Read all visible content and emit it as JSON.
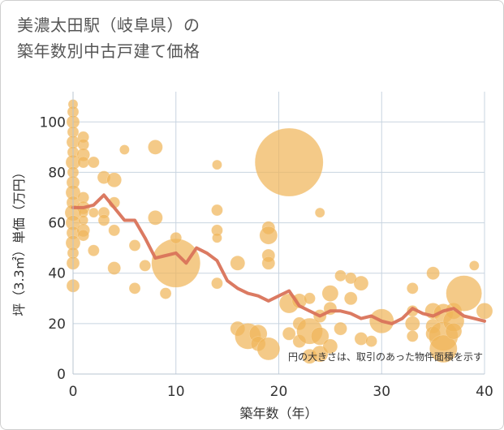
{
  "title_lines": [
    "美濃太田駅（岐阜県）の",
    "築年数別中古戸建て価格"
  ],
  "chart_data": {
    "type": "scatter",
    "xlabel": "築年数（年）",
    "ylabel": "坪（3.3㎡）単価（万円）",
    "xlim": [
      0,
      40
    ],
    "ylim": [
      0,
      112
    ],
    "xticks": [
      0,
      10,
      20,
      30,
      40
    ],
    "yticks": [
      0,
      20,
      40,
      60,
      80,
      100
    ],
    "grid": true,
    "annotation": "円の大きさは、取引のあった物件面積を示す",
    "colors": {
      "bubble": "#f0b65a",
      "line": "#d9735a",
      "grid": "#c8d4e0"
    },
    "points": [
      {
        "x": 0,
        "y": 107,
        "s": 6
      },
      {
        "x": 0,
        "y": 104,
        "s": 7
      },
      {
        "x": 0,
        "y": 100,
        "s": 8
      },
      {
        "x": 0,
        "y": 96,
        "s": 7
      },
      {
        "x": 0,
        "y": 92,
        "s": 8
      },
      {
        "x": 0,
        "y": 88,
        "s": 7
      },
      {
        "x": 0,
        "y": 84,
        "s": 9
      },
      {
        "x": 0,
        "y": 80,
        "s": 7
      },
      {
        "x": 0,
        "y": 76,
        "s": 8
      },
      {
        "x": 0,
        "y": 72,
        "s": 9
      },
      {
        "x": 0,
        "y": 68,
        "s": 8
      },
      {
        "x": 0,
        "y": 64,
        "s": 10
      },
      {
        "x": 0,
        "y": 60,
        "s": 9
      },
      {
        "x": 0,
        "y": 56,
        "s": 8
      },
      {
        "x": 0,
        "y": 52,
        "s": 9
      },
      {
        "x": 0,
        "y": 48,
        "s": 7
      },
      {
        "x": 0,
        "y": 44,
        "s": 8
      },
      {
        "x": 0,
        "y": 35,
        "s": 8
      },
      {
        "x": 1,
        "y": 94,
        "s": 7
      },
      {
        "x": 1,
        "y": 91,
        "s": 7
      },
      {
        "x": 1,
        "y": 87,
        "s": 8
      },
      {
        "x": 1,
        "y": 84,
        "s": 7
      },
      {
        "x": 1,
        "y": 70,
        "s": 7
      },
      {
        "x": 1,
        "y": 66,
        "s": 8
      },
      {
        "x": 1,
        "y": 64,
        "s": 6
      },
      {
        "x": 1,
        "y": 61,
        "s": 6
      },
      {
        "x": 1,
        "y": 57,
        "s": 8
      },
      {
        "x": 1,
        "y": 55,
        "s": 7
      },
      {
        "x": 2,
        "y": 84,
        "s": 7
      },
      {
        "x": 2,
        "y": 64,
        "s": 6
      },
      {
        "x": 2,
        "y": 49,
        "s": 7
      },
      {
        "x": 3,
        "y": 78,
        "s": 8
      },
      {
        "x": 3,
        "y": 64,
        "s": 7
      },
      {
        "x": 3,
        "y": 61,
        "s": 7
      },
      {
        "x": 4,
        "y": 77,
        "s": 9
      },
      {
        "x": 4,
        "y": 68,
        "s": 7
      },
      {
        "x": 4,
        "y": 57,
        "s": 7
      },
      {
        "x": 4,
        "y": 42,
        "s": 8
      },
      {
        "x": 5,
        "y": 89,
        "s": 6
      },
      {
        "x": 6,
        "y": 51,
        "s": 7
      },
      {
        "x": 6,
        "y": 34,
        "s": 7
      },
      {
        "x": 7,
        "y": 43,
        "s": 7
      },
      {
        "x": 8,
        "y": 90,
        "s": 9
      },
      {
        "x": 8,
        "y": 62,
        "s": 9
      },
      {
        "x": 9,
        "y": 32,
        "s": 7
      },
      {
        "x": 10,
        "y": 44,
        "s": 30
      },
      {
        "x": 10,
        "y": 54,
        "s": 7
      },
      {
        "x": 14,
        "y": 83,
        "s": 6
      },
      {
        "x": 14,
        "y": 65,
        "s": 7
      },
      {
        "x": 14,
        "y": 57,
        "s": 7
      },
      {
        "x": 14,
        "y": 54,
        "s": 6
      },
      {
        "x": 14,
        "y": 36,
        "s": 7
      },
      {
        "x": 16,
        "y": 44,
        "s": 9
      },
      {
        "x": 16,
        "y": 18,
        "s": 9
      },
      {
        "x": 17,
        "y": 15,
        "s": 16
      },
      {
        "x": 18,
        "y": 16,
        "s": 11
      },
      {
        "x": 18,
        "y": 12,
        "s": 9
      },
      {
        "x": 19,
        "y": 58,
        "s": 8
      },
      {
        "x": 19,
        "y": 55,
        "s": 11
      },
      {
        "x": 19,
        "y": 47,
        "s": 8
      },
      {
        "x": 19,
        "y": 44,
        "s": 8
      },
      {
        "x": 19,
        "y": 10,
        "s": 14
      },
      {
        "x": 21,
        "y": 84,
        "s": 42
      },
      {
        "x": 21,
        "y": 28,
        "s": 12
      },
      {
        "x": 21,
        "y": 16,
        "s": 8
      },
      {
        "x": 22,
        "y": 29,
        "s": 9
      },
      {
        "x": 22,
        "y": 20,
        "s": 8
      },
      {
        "x": 22,
        "y": 13,
        "s": 8
      },
      {
        "x": 23,
        "y": 30,
        "s": 7
      },
      {
        "x": 23,
        "y": 17,
        "s": 16
      },
      {
        "x": 23,
        "y": 7,
        "s": 9
      },
      {
        "x": 24,
        "y": 64,
        "s": 6
      },
      {
        "x": 24,
        "y": 23,
        "s": 8
      },
      {
        "x": 24,
        "y": 15,
        "s": 11
      },
      {
        "x": 24,
        "y": 8,
        "s": 10
      },
      {
        "x": 25,
        "y": 32,
        "s": 10
      },
      {
        "x": 25,
        "y": 26,
        "s": 8
      },
      {
        "x": 25,
        "y": 11,
        "s": 9
      },
      {
        "x": 26,
        "y": 39,
        "s": 7
      },
      {
        "x": 26,
        "y": 18,
        "s": 8
      },
      {
        "x": 27,
        "y": 38,
        "s": 7
      },
      {
        "x": 27,
        "y": 30,
        "s": 8
      },
      {
        "x": 28,
        "y": 36,
        "s": 9
      },
      {
        "x": 28,
        "y": 14,
        "s": 8
      },
      {
        "x": 29,
        "y": 13,
        "s": 7
      },
      {
        "x": 30,
        "y": 21,
        "s": 15
      },
      {
        "x": 33,
        "y": 34,
        "s": 7
      },
      {
        "x": 33,
        "y": 25,
        "s": 7
      },
      {
        "x": 33,
        "y": 20,
        "s": 9
      },
      {
        "x": 33,
        "y": 15,
        "s": 7
      },
      {
        "x": 35,
        "y": 40,
        "s": 8
      },
      {
        "x": 35,
        "y": 25,
        "s": 10
      },
      {
        "x": 35,
        "y": 19,
        "s": 9
      },
      {
        "x": 35,
        "y": 16,
        "s": 9
      },
      {
        "x": 36,
        "y": 24,
        "s": 12
      },
      {
        "x": 36,
        "y": 15,
        "s": 18
      },
      {
        "x": 36,
        "y": 10,
        "s": 17
      },
      {
        "x": 37,
        "y": 25,
        "s": 10
      },
      {
        "x": 37,
        "y": 21,
        "s": 13
      },
      {
        "x": 37,
        "y": 17,
        "s": 10
      },
      {
        "x": 38,
        "y": 32,
        "s": 22
      },
      {
        "x": 39,
        "y": 43,
        "s": 6
      },
      {
        "x": 40,
        "y": 25,
        "s": 10
      }
    ],
    "trend_line": {
      "x": [
        0,
        1,
        2,
        3,
        4,
        5,
        6,
        7,
        8,
        9,
        10,
        11,
        12,
        13,
        14,
        15,
        16,
        17,
        18,
        19,
        20,
        21,
        22,
        23,
        24,
        25,
        26,
        27,
        28,
        29,
        30,
        31,
        32,
        33,
        34,
        35,
        36,
        37,
        38,
        39,
        40
      ],
      "y": [
        66,
        66,
        67,
        71,
        66,
        61,
        61,
        54,
        46,
        47,
        48,
        44,
        50,
        48,
        45,
        37,
        34,
        32,
        31,
        29,
        31,
        33,
        27,
        25,
        23,
        25,
        25,
        24,
        22,
        23,
        21,
        20,
        22,
        26,
        24,
        23,
        25,
        26,
        23,
        22,
        21
      ]
    }
  }
}
